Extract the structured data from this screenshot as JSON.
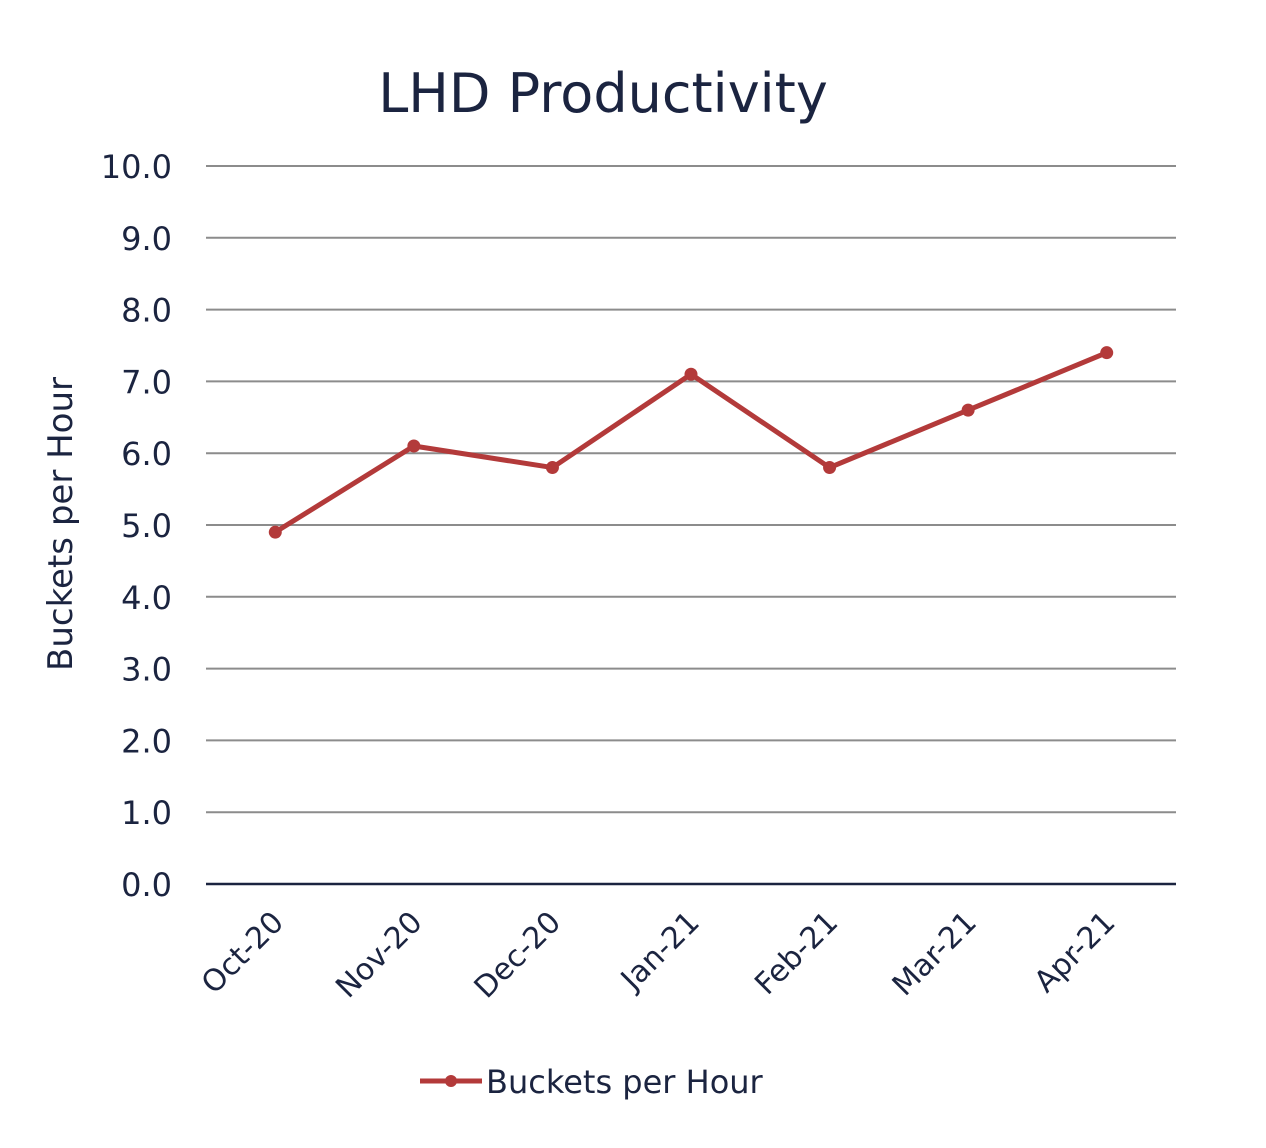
{
  "chart_data": {
    "type": "line",
    "title": "LHD Productivity",
    "xlabel": "",
    "ylabel": "Buckets per Hour",
    "categories": [
      "Oct-20",
      "Nov-20",
      "Dec-20",
      "Jan-21",
      "Feb-21",
      "Mar-21",
      "Apr-21"
    ],
    "series": [
      {
        "name": "Buckets per Hour",
        "values": [
          4.9,
          6.1,
          5.8,
          7.1,
          5.8,
          6.6,
          7.4
        ],
        "color": "#b33a3a"
      }
    ],
    "ylim": [
      0,
      10
    ],
    "yticks": [
      "0.0",
      "1.0",
      "2.0",
      "3.0",
      "4.0",
      "5.0",
      "6.0",
      "7.0",
      "8.0",
      "9.0",
      "10.0"
    ],
    "grid": true,
    "legend": "bottom"
  },
  "colors": {
    "text": "#1b2440",
    "gridline": "#8c8c8c",
    "axis": "#1b2440",
    "series": "#b33a3a"
  }
}
